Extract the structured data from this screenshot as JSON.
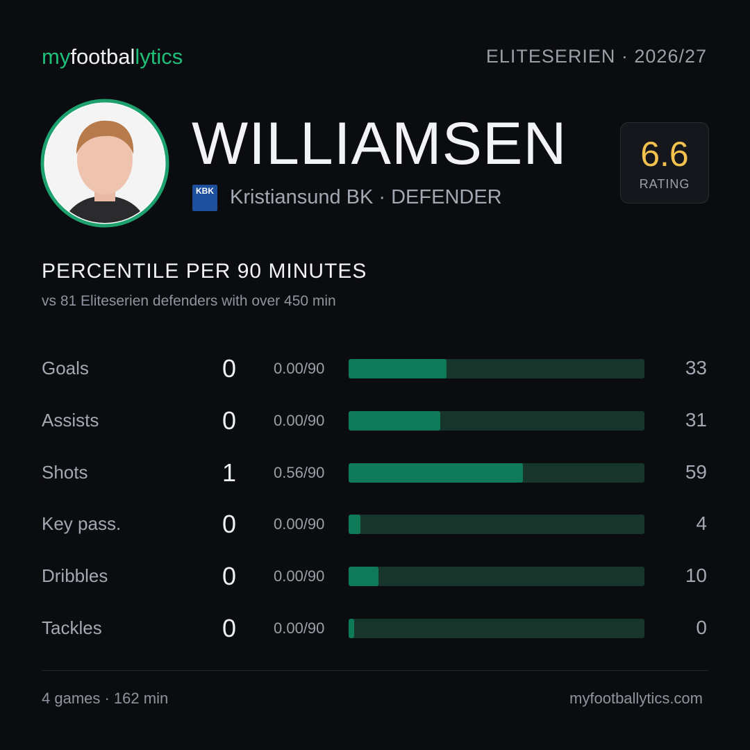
{
  "header": {
    "brand": [
      "my",
      "footbal",
      "lytics"
    ],
    "league": "ELITESERIEN · 2026/27"
  },
  "player": {
    "name": "WILLIAMSEN",
    "club_badge": "KBK",
    "club": "Kristiansund BK · DEFENDER",
    "rating": 6.6,
    "rating_label": "RATING"
  },
  "section": {
    "title": "PERCENTILE PER 90 MINUTES",
    "subtitle": "vs 81 Eliteserien defenders with over 450 min"
  },
  "stats": {
    "xlim": [
      0,
      100
    ],
    "rows": [
      {
        "label": "Goals",
        "count": 0,
        "per90": "0.00/90",
        "percentile": 33
      },
      {
        "label": "Assists",
        "count": 0,
        "per90": "0.00/90",
        "percentile": 31
      },
      {
        "label": "Shots",
        "count": 1,
        "per90": "0.56/90",
        "percentile": 59
      },
      {
        "label": "Key pass.",
        "count": 0,
        "per90": "0.00/90",
        "percentile": 4
      },
      {
        "label": "Dribbles",
        "count": 0,
        "per90": "0.00/90",
        "percentile": 10
      },
      {
        "label": "Tackles",
        "count": 0,
        "per90": "0.00/90",
        "percentile": 0
      }
    ]
  },
  "footer": {
    "summary": "4 games · 162 min",
    "site": "myfootballytics.com"
  }
}
